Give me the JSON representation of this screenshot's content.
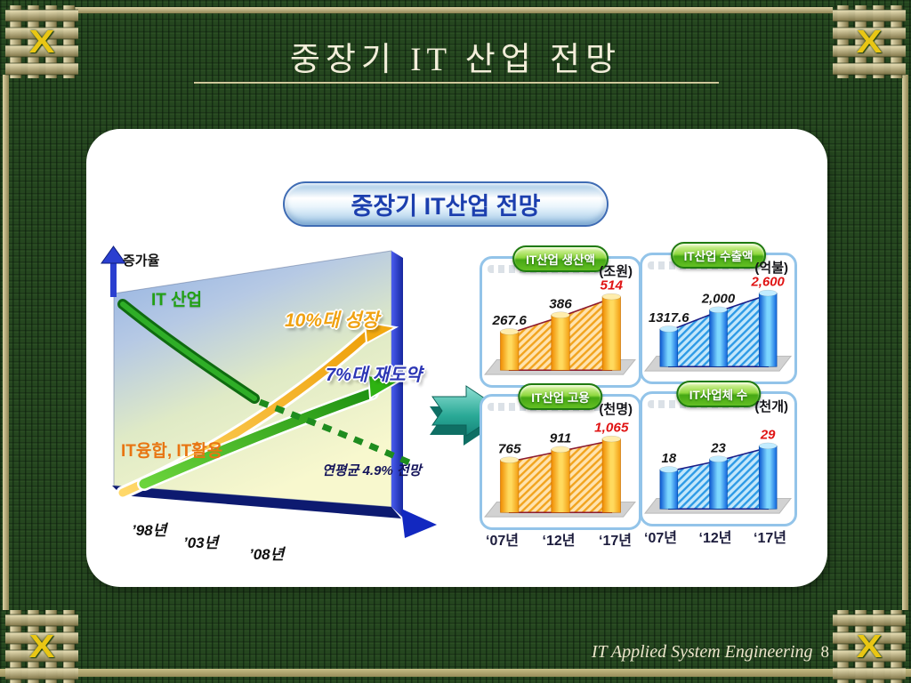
{
  "slide": {
    "title": "중장기 IT 산업 전망",
    "ornament_glyph": "X",
    "footer": {
      "text": "IT Applied System Engineering",
      "page": "8"
    }
  },
  "panel": {
    "heading": "중장기 IT산업 전망"
  },
  "trend": {
    "y_axis": "증가율",
    "industry": "IT 산업",
    "growth": "10%대 성장",
    "rebound": "7%대 재도약",
    "fusion": "IT융합, IT활용",
    "forecast": "연평균 4.9% 전망",
    "ticks": [
      "’98년",
      "’03년",
      "’08년"
    ]
  },
  "charts": [
    {
      "title": "IT산업 생산액",
      "unit": "(조원)",
      "values": [
        267.6,
        386,
        514
      ],
      "value_labels": [
        "267.6",
        "386",
        "514"
      ],
      "palette": "orange",
      "ticks": []
    },
    {
      "title": "IT산업 수출액",
      "unit": "(억불)",
      "values": [
        1317.6,
        2000,
        2600
      ],
      "value_labels": [
        "1317.6",
        "2,000",
        "2,600"
      ],
      "palette": "blue",
      "ticks": []
    },
    {
      "title": "IT산업 고용",
      "unit": "(천명)",
      "values": [
        765,
        911,
        1065
      ],
      "value_labels": [
        "765",
        "911",
        "1,065"
      ],
      "palette": "orange",
      "ticks": [
        "‘07년",
        "‘12년",
        "‘17년"
      ]
    },
    {
      "title": "IT사업체 수",
      "unit": "(천개)",
      "values": [
        18,
        23,
        29
      ],
      "value_labels": [
        "18",
        "23",
        "29"
      ],
      "palette": "blue",
      "ticks": [
        "‘07년",
        "‘12년",
        "‘17년"
      ]
    }
  ],
  "colors": {
    "background_green": "#25461f",
    "ornament_tan": "#cfc493",
    "pill_green": "#46a814",
    "bar_orange": "#ffaa00",
    "bar_blue": "#1d7fe0",
    "value_red": "#e01414",
    "arrow_teal": "#2db3a6",
    "heading_blue_text": "#1c3fae"
  },
  "chart_data": [
    {
      "type": "line",
      "title": "중장기 IT산업 전망",
      "ylabel": "증가율",
      "x": [
        "’98년",
        "’03년",
        "’08년"
      ],
      "annotations": [
        "IT 산업",
        "10%대 성장",
        "7%대 재도약",
        "IT융합, IT활용",
        "연평균 4.9% 전망"
      ],
      "description": "IT산업 성장률 하락 추세 후 10%대 성장 / 7%대 재도약 시나리오, IT융합·IT활용으로 연평균 4.9% 전망"
    },
    {
      "type": "bar",
      "title": "IT산업 생산액",
      "ylabel": "조원",
      "categories": [
        "‘07년",
        "‘12년",
        "‘17년"
      ],
      "values": [
        267.6,
        386,
        514
      ]
    },
    {
      "type": "bar",
      "title": "IT산업 수출액",
      "ylabel": "억불",
      "categories": [
        "‘07년",
        "‘12년",
        "‘17년"
      ],
      "values": [
        1317.6,
        2000,
        2600
      ]
    },
    {
      "type": "bar",
      "title": "IT산업 고용",
      "ylabel": "천명",
      "categories": [
        "‘07년",
        "‘12년",
        "‘17년"
      ],
      "values": [
        765,
        911,
        1065
      ]
    },
    {
      "type": "bar",
      "title": "IT사업체 수",
      "ylabel": "천개",
      "categories": [
        "‘07년",
        "‘12년",
        "‘17년"
      ],
      "values": [
        18,
        23,
        29
      ]
    }
  ]
}
